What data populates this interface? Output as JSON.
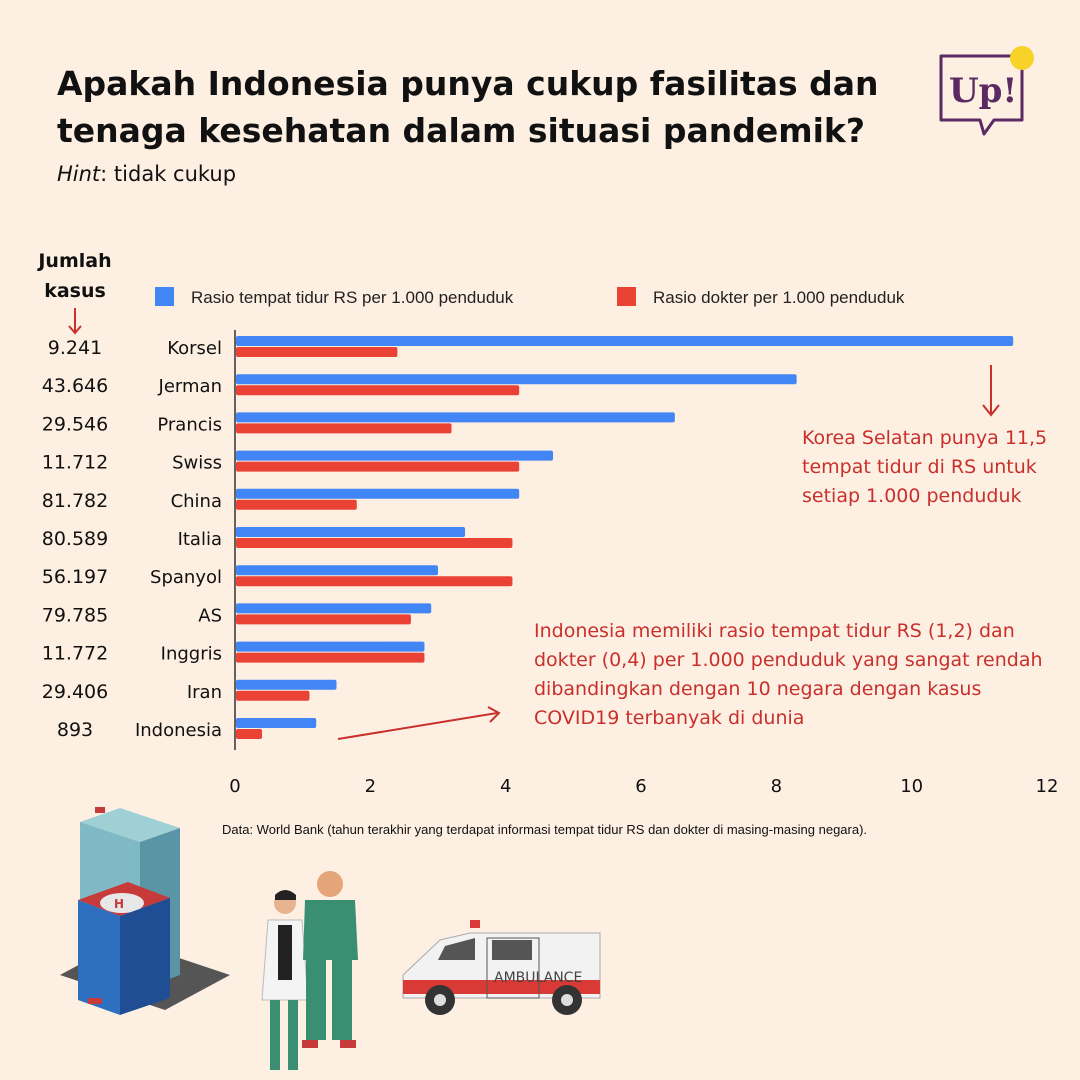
{
  "header": {
    "title": "Apakah Indonesia punya cukup fasilitas dan tenaga kesehatan dalam situasi pandemik?",
    "hint_label": "Hint",
    "hint_text": ": tidak cukup"
  },
  "logo": {
    "text": "Up!"
  },
  "cases_header": {
    "line1": "Jumlah",
    "line2": "kasus"
  },
  "chart_data": {
    "type": "bar",
    "orientation": "horizontal",
    "categories": [
      "Korsel",
      "Jerman",
      "Prancis",
      "Swiss",
      "China",
      "Italia",
      "Spanyol",
      "AS",
      "Inggris",
      "Iran",
      "Indonesia"
    ],
    "series": [
      {
        "name": "Rasio tempat tidur RS per 1.000 penduduk",
        "color": "#4285f4",
        "values": [
          11.5,
          8.3,
          6.5,
          4.7,
          4.2,
          3.4,
          3.0,
          2.9,
          2.8,
          1.5,
          1.2
        ]
      },
      {
        "name": "Rasio dokter per 1.000 penduduk",
        "color": "#ea4335",
        "values": [
          2.4,
          4.2,
          3.2,
          4.2,
          1.8,
          4.1,
          4.1,
          2.6,
          2.8,
          1.1,
          0.4
        ]
      }
    ],
    "xlim": [
      0,
      12
    ],
    "xticks": [
      "0",
      "2",
      "4",
      "6",
      "8",
      "10",
      "12"
    ],
    "legend_position": "top",
    "cases": [
      "9.241",
      "43.646",
      "29.546",
      "11.712",
      "81.782",
      "80.589",
      "56.197",
      "79.785",
      "11.772",
      "29.406",
      "893"
    ]
  },
  "annotations": {
    "korea": "Korea Selatan punya 11,5 tempat tidur di RS untuk setiap 1.000 penduduk",
    "indonesia": "Indonesia memiliki rasio tempat tidur RS (1,2) dan dokter (0,4) per 1.000 penduduk yang sangat rendah dibandingkan dengan 10 negara dengan kasus COVID19 terbanyak di dunia"
  },
  "source": "Data: World Bank (tahun terakhir yang terdapat informasi tempat tidur RS dan dokter di masing-masing negara).",
  "ambulance_text": "AMBULANCE",
  "colors": {
    "background": "#fdf0e3",
    "annotation": "#c9302c",
    "logo": "#5b2a63",
    "logo_dot": "#f7d32a"
  }
}
